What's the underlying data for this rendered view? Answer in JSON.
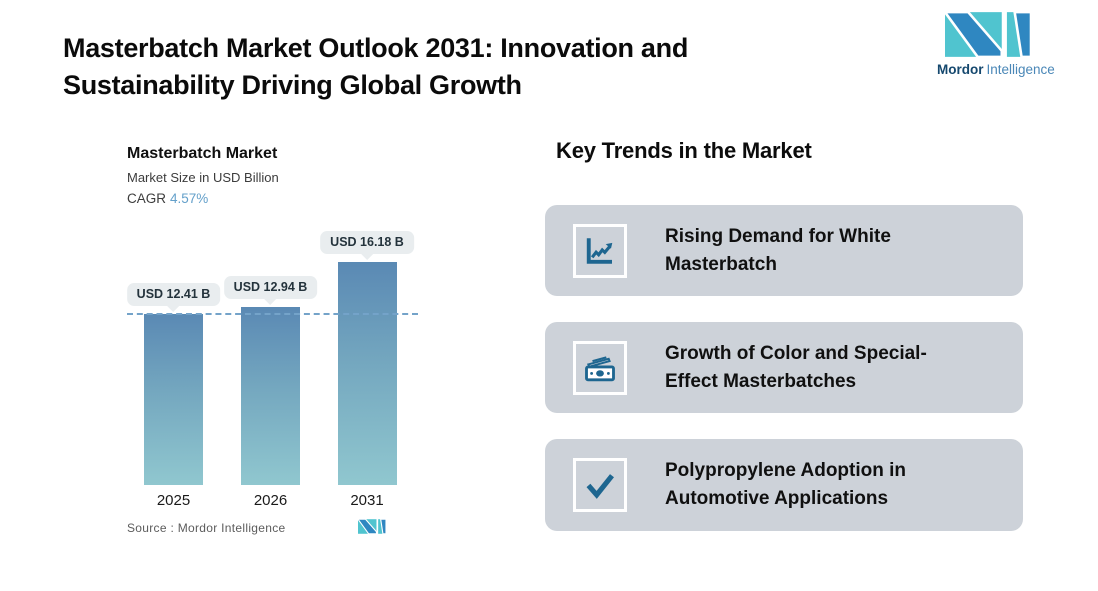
{
  "header": {
    "title_line1": "Masterbatch Market Outlook 2031: Innovation and",
    "title_line2": "Sustainability Driving Global Growth",
    "brand_bold": "Mordor",
    "brand_light": "Intelligence"
  },
  "chart": {
    "title": "Masterbatch Market",
    "subtitle": "Market Size in USD Billion",
    "cagr_label": "CAGR",
    "cagr_value": "4.57%",
    "source_label": "Source :  Mordor Intelligence"
  },
  "chart_data": {
    "type": "bar",
    "title": "Masterbatch Market",
    "subtitle": "Market Size in USD Billion",
    "cagr": "4.57%",
    "unit": "USD Billion",
    "categories": [
      "2025",
      "2026",
      "2031"
    ],
    "values": [
      12.41,
      12.94,
      16.18
    ],
    "value_labels": [
      "USD 12.41 B",
      "USD 12.94 B",
      "USD 16.18 B"
    ],
    "ylim": [
      0,
      18.5
    ],
    "reference_line": 12.41,
    "grid": "off",
    "bar_gradient_top": "#5a89b4",
    "bar_gradient_bottom": "#90c7cf",
    "reference_line_color": "#74a3c9",
    "source": "Source :  Mordor Intelligence"
  },
  "trends": {
    "heading": "Key Trends in the Market",
    "cards": [
      {
        "icon": "line-chart-icon",
        "line1": "Rising Demand for White",
        "line2": "Masterbatch"
      },
      {
        "icon": "money-icon",
        "line1": "Growth of Color and Special-",
        "line2": "Effect Masterbatches"
      },
      {
        "icon": "checkmark-icon",
        "line1": "Polypropylene Adoption in",
        "line2": "Automotive Applications"
      }
    ]
  },
  "colors": {
    "card_background": "#cdd2d9",
    "icon_blue": "#1e6690",
    "logo_teal": "#50c4cf",
    "logo_blue": "#2f87c1",
    "cagr_blue": "#64a0ca",
    "pill_background": "#e9edef"
  }
}
